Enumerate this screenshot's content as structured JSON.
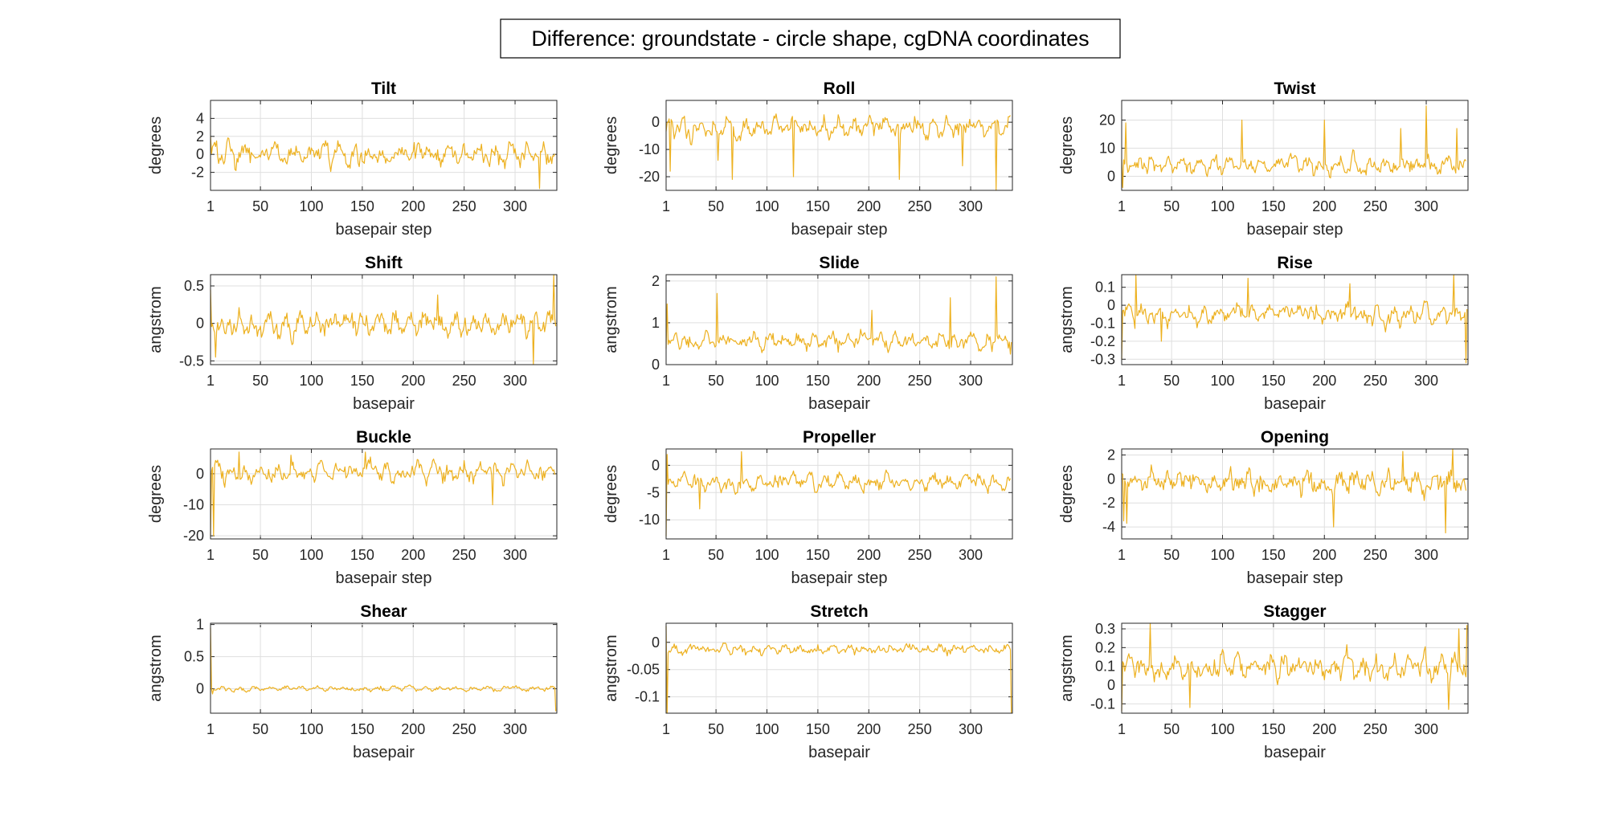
{
  "figure": {
    "title": "Difference: groundstate - circle shape, cgDNA coordinates",
    "colors": {
      "line": "#EDB120",
      "axes": "#262626",
      "grid": "#DFDFDF",
      "background": "#FFFFFF"
    }
  },
  "chart_data": [
    {
      "type": "line",
      "title": "Tilt",
      "xlabel": "basepair step",
      "ylabel": "degrees",
      "xlim": [
        1,
        341
      ],
      "ylim": [
        -4,
        6
      ],
      "xticks": [
        1,
        50,
        100,
        150,
        200,
        250,
        300
      ],
      "yticks": [
        -2,
        0,
        2,
        4
      ],
      "n": 339,
      "amplitude": 1.0,
      "offset": 0,
      "spikes": [
        [
          1,
          2.0
        ],
        [
          324,
          -3.8
        ],
        [
          340,
          5.8
        ]
      ]
    },
    {
      "type": "line",
      "title": "Roll",
      "xlabel": "basepair step",
      "ylabel": "degrees",
      "xlim": [
        1,
        341
      ],
      "ylim": [
        -25,
        8
      ],
      "xticks": [
        1,
        50,
        100,
        150,
        200,
        250,
        300
      ],
      "yticks": [
        -20,
        -10,
        0
      ],
      "n": 339,
      "amplitude": 3.0,
      "offset": -2,
      "spikes": [
        [
          5,
          -18
        ],
        [
          52,
          -14
        ],
        [
          66,
          -21
        ],
        [
          126,
          -20
        ],
        [
          230,
          -21
        ],
        [
          292,
          -16
        ],
        [
          325,
          -25
        ],
        [
          340,
          7
        ]
      ]
    },
    {
      "type": "line",
      "title": "Twist",
      "xlabel": "basepair step",
      "ylabel": "degrees",
      "xlim": [
        1,
        341
      ],
      "ylim": [
        -5,
        27
      ],
      "xticks": [
        1,
        50,
        100,
        150,
        200,
        250,
        300
      ],
      "yticks": [
        0,
        10,
        20
      ],
      "n": 339,
      "amplitude": 2.5,
      "offset": 4,
      "spikes": [
        [
          2,
          -4
        ],
        [
          5,
          19
        ],
        [
          119,
          20
        ],
        [
          200,
          20
        ],
        [
          275,
          17
        ],
        [
          300,
          25
        ],
        [
          330,
          17
        ],
        [
          340,
          27
        ]
      ]
    },
    {
      "type": "line",
      "title": "Shift",
      "xlabel": "basepair",
      "ylabel": "angstrom",
      "xlim": [
        1,
        341
      ],
      "ylim": [
        -0.55,
        0.65
      ],
      "xticks": [
        1,
        50,
        100,
        150,
        200,
        250,
        300
      ],
      "yticks": [
        -0.5,
        0,
        0.5
      ],
      "n": 340,
      "amplitude": 0.13,
      "offset": 0,
      "spikes": [
        [
          1,
          0.45
        ],
        [
          6,
          -0.45
        ],
        [
          224,
          0.38
        ],
        [
          318,
          -0.55
        ],
        [
          338,
          0.65
        ]
      ]
    },
    {
      "type": "line",
      "title": "Slide",
      "xlabel": "basepair",
      "ylabel": "angstrom",
      "xlim": [
        1,
        341
      ],
      "ylim": [
        0,
        2.15
      ],
      "xticks": [
        1,
        50,
        100,
        150,
        200,
        250,
        300
      ],
      "yticks": [
        0,
        1,
        2
      ],
      "n": 340,
      "amplitude": 0.15,
      "offset": 0.55,
      "spikes": [
        [
          2,
          1.45
        ],
        [
          51,
          1.7
        ],
        [
          203,
          1.3
        ],
        [
          280,
          1.6
        ],
        [
          325,
          2.1
        ],
        [
          339,
          0.25
        ]
      ]
    },
    {
      "type": "line",
      "title": "Rise",
      "xlabel": "basepair",
      "ylabel": "angstrom",
      "xlim": [
        1,
        341
      ],
      "ylim": [
        -0.33,
        0.17
      ],
      "xticks": [
        1,
        50,
        100,
        150,
        200,
        250,
        300
      ],
      "yticks": [
        -0.3,
        -0.2,
        -0.1,
        0,
        0.1
      ],
      "n": 340,
      "amplitude": 0.045,
      "offset": -0.05,
      "spikes": [
        [
          1,
          -0.3
        ],
        [
          15,
          0.17
        ],
        [
          40,
          -0.2
        ],
        [
          125,
          0.15
        ],
        [
          225,
          0.12
        ],
        [
          327,
          0.17
        ],
        [
          339,
          -0.32
        ]
      ]
    },
    {
      "type": "line",
      "title": "Buckle",
      "xlabel": "basepair step",
      "ylabel": "degrees",
      "xlim": [
        1,
        341
      ],
      "ylim": [
        -21,
        8
      ],
      "xticks": [
        1,
        50,
        100,
        150,
        200,
        250,
        300
      ],
      "yticks": [
        -20,
        -10,
        0
      ],
      "n": 339,
      "amplitude": 2.5,
      "offset": 0.5,
      "spikes": [
        [
          1,
          -20
        ],
        [
          4,
          -20
        ],
        [
          29,
          7
        ],
        [
          80,
          6
        ],
        [
          153,
          7
        ],
        [
          278,
          -10
        ],
        [
          340,
          7
        ]
      ]
    },
    {
      "type": "line",
      "title": "Propeller",
      "xlabel": "basepair step",
      "ylabel": "degrees",
      "xlim": [
        1,
        341
      ],
      "ylim": [
        -13.5,
        3
      ],
      "xticks": [
        1,
        50,
        100,
        150,
        200,
        250,
        300
      ],
      "yticks": [
        -10,
        -5,
        0
      ],
      "n": 339,
      "amplitude": 1.2,
      "offset": -3,
      "spikes": [
        [
          1,
          -13
        ],
        [
          2,
          2
        ],
        [
          34,
          -8
        ],
        [
          75,
          2.5
        ],
        [
          340,
          -13
        ]
      ]
    },
    {
      "type": "line",
      "title": "Opening",
      "xlabel": "basepair step",
      "ylabel": "degrees",
      "xlim": [
        1,
        341
      ],
      "ylim": [
        -5,
        2.5
      ],
      "xticks": [
        1,
        50,
        100,
        150,
        200,
        250,
        300
      ],
      "yticks": [
        -4,
        -2,
        0,
        2
      ],
      "n": 339,
      "amplitude": 0.8,
      "offset": -0.3,
      "spikes": [
        [
          3,
          -3.5
        ],
        [
          6,
          -3.7
        ],
        [
          209,
          -4.0
        ],
        [
          277,
          2.3
        ],
        [
          319,
          -4.5
        ],
        [
          326,
          2.5
        ],
        [
          340,
          -4.8
        ]
      ]
    },
    {
      "type": "line",
      "title": "Shear",
      "xlabel": "basepair",
      "ylabel": "angstrom",
      "xlim": [
        1,
        341
      ],
      "ylim": [
        -0.38,
        1.02
      ],
      "xticks": [
        1,
        50,
        100,
        150,
        200,
        250,
        300
      ],
      "yticks": [
        0,
        0.5,
        1
      ],
      "n": 340,
      "amplitude": 0.03,
      "offset": 0,
      "spikes": [
        [
          1,
          0.95
        ],
        [
          3,
          -0.08
        ],
        [
          340,
          -0.35
        ]
      ]
    },
    {
      "type": "line",
      "title": "Stretch",
      "xlabel": "basepair",
      "ylabel": "angstrom",
      "xlim": [
        1,
        341
      ],
      "ylim": [
        -0.13,
        0.035
      ],
      "xticks": [
        1,
        50,
        100,
        150,
        200,
        250,
        300
      ],
      "yticks": [
        -0.1,
        -0.05,
        0
      ],
      "n": 340,
      "amplitude": 0.007,
      "offset": -0.012,
      "spikes": [
        [
          1,
          0.03
        ],
        [
          2,
          -0.13
        ],
        [
          340,
          -0.13
        ]
      ]
    },
    {
      "type": "line",
      "title": "Stagger",
      "xlabel": "basepair",
      "ylabel": "angstrom",
      "xlim": [
        1,
        341
      ],
      "ylim": [
        -0.15,
        0.33
      ],
      "xticks": [
        1,
        50,
        100,
        150,
        200,
        250,
        300
      ],
      "yticks": [
        -0.1,
        0,
        0.1,
        0.2,
        0.3
      ],
      "n": 340,
      "amplitude": 0.055,
      "offset": 0.1,
      "spikes": [
        [
          1,
          -0.14
        ],
        [
          29,
          0.33
        ],
        [
          68,
          -0.12
        ],
        [
          322,
          -0.13
        ],
        [
          332,
          0.3
        ],
        [
          340,
          0.32
        ]
      ]
    }
  ]
}
